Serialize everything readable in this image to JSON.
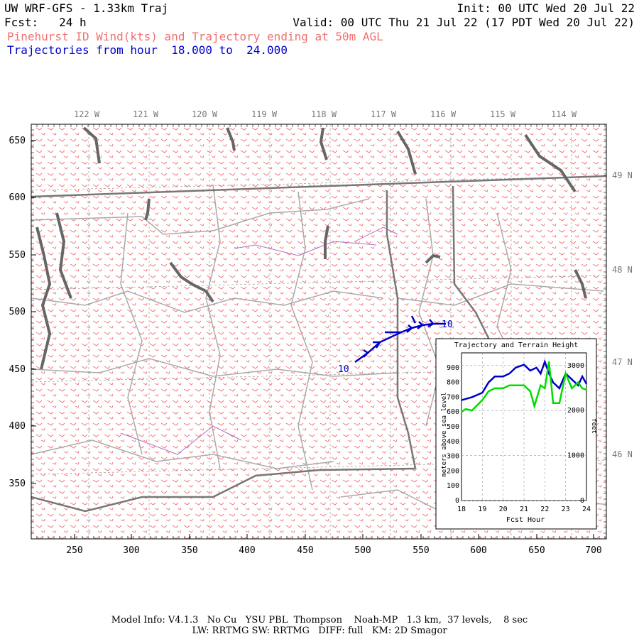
{
  "header": {
    "title": "UW WRF-GFS - 1.33km Traj",
    "init": "Init: 00 UTC Wed 20 Jul 22",
    "fcst": "Fcst:   24 h",
    "valid": "Valid: 00 UTC Thu 21 Jul 22 (17 PDT Wed 20 Jul 22)",
    "subtitle": "Pinehurst ID Wind(kts) and Trajectory ending at 50m AGL",
    "traj_hours": "Trajectories from hour  18.000 to  24.000"
  },
  "map": {
    "lon_labels": [
      "122 W",
      "121 W",
      "120 W",
      "119 W",
      "118 W",
      "117 W",
      "116 W",
      "115 W",
      "114 W"
    ],
    "lat_labels": [
      "49 N",
      "48 N",
      "47 N",
      "46 N"
    ],
    "x_ticks": [
      "250",
      "300",
      "350",
      "400",
      "450",
      "500",
      "550",
      "600",
      "650",
      "700"
    ],
    "y_ticks": [
      "650",
      "600",
      "550",
      "500",
      "450",
      "400",
      "350"
    ],
    "trajectory_label_start": "10",
    "trajectory_label_end": "10",
    "colors": {
      "wind_barbs": "#f07070",
      "trajectory": "#0000cc",
      "state_border": "#777777",
      "county": "#aaaaaa",
      "water": "#666666"
    }
  },
  "inset": {
    "title": "Trajectory and Terrain Height",
    "ylabel": "meters above sea level",
    "ylabel_right": "feet",
    "xlabel": "Fcst Hour",
    "x_ticks": [
      "18",
      "19",
      "20",
      "21",
      "22",
      "23",
      "24"
    ],
    "y_ticks": [
      "0",
      "100",
      "200",
      "300",
      "400",
      "500",
      "600",
      "700",
      "800",
      "900"
    ],
    "y2_ticks": [
      "0",
      "1000",
      "2000",
      "3000"
    ]
  },
  "chart_data": {
    "type": "line",
    "title": "Trajectory and Terrain Height",
    "xlabel": "Fcst Hour",
    "ylabel": "meters above sea level",
    "xlim": [
      18,
      24
    ],
    "ylim": [
      0,
      1000
    ],
    "series": [
      {
        "name": "",
        "color": "#0000cc",
        "x": [
          18,
          18.5,
          19,
          19.3,
          19.6,
          20,
          20.3,
          20.6,
          21,
          21.3,
          21.6,
          21.8,
          22,
          22.2,
          22.4,
          22.7,
          23,
          23.3,
          23.6,
          23.8,
          24
        ],
        "values": [
          680,
          700,
          730,
          800,
          840,
          840,
          860,
          900,
          920,
          880,
          900,
          860,
          940,
          860,
          800,
          760,
          860,
          820,
          780,
          840,
          790
        ]
      },
      {
        "name": "",
        "color": "#00dd00",
        "x": [
          18,
          18.2,
          18.5,
          19,
          19.3,
          19.6,
          20,
          20.3,
          20.6,
          21,
          21.3,
          21.5,
          21.8,
          22,
          22.2,
          22.4,
          22.7,
          23,
          23.3,
          23.6,
          23.8,
          24
        ],
        "values": [
          600,
          620,
          610,
          680,
          740,
          760,
          760,
          780,
          780,
          780,
          740,
          640,
          780,
          760,
          940,
          660,
          660,
          860,
          760,
          800,
          760,
          750
        ]
      }
    ]
  },
  "footer": {
    "line1": "Model Info: V4.1.3   No Cu   YSU PBL  Thompson    Noah-MP   1.3 km,  37 levels,    8 sec",
    "line2": "LW: RRTMG SW: RRTMG   DIFF: full   KM: 2D Smagor"
  }
}
